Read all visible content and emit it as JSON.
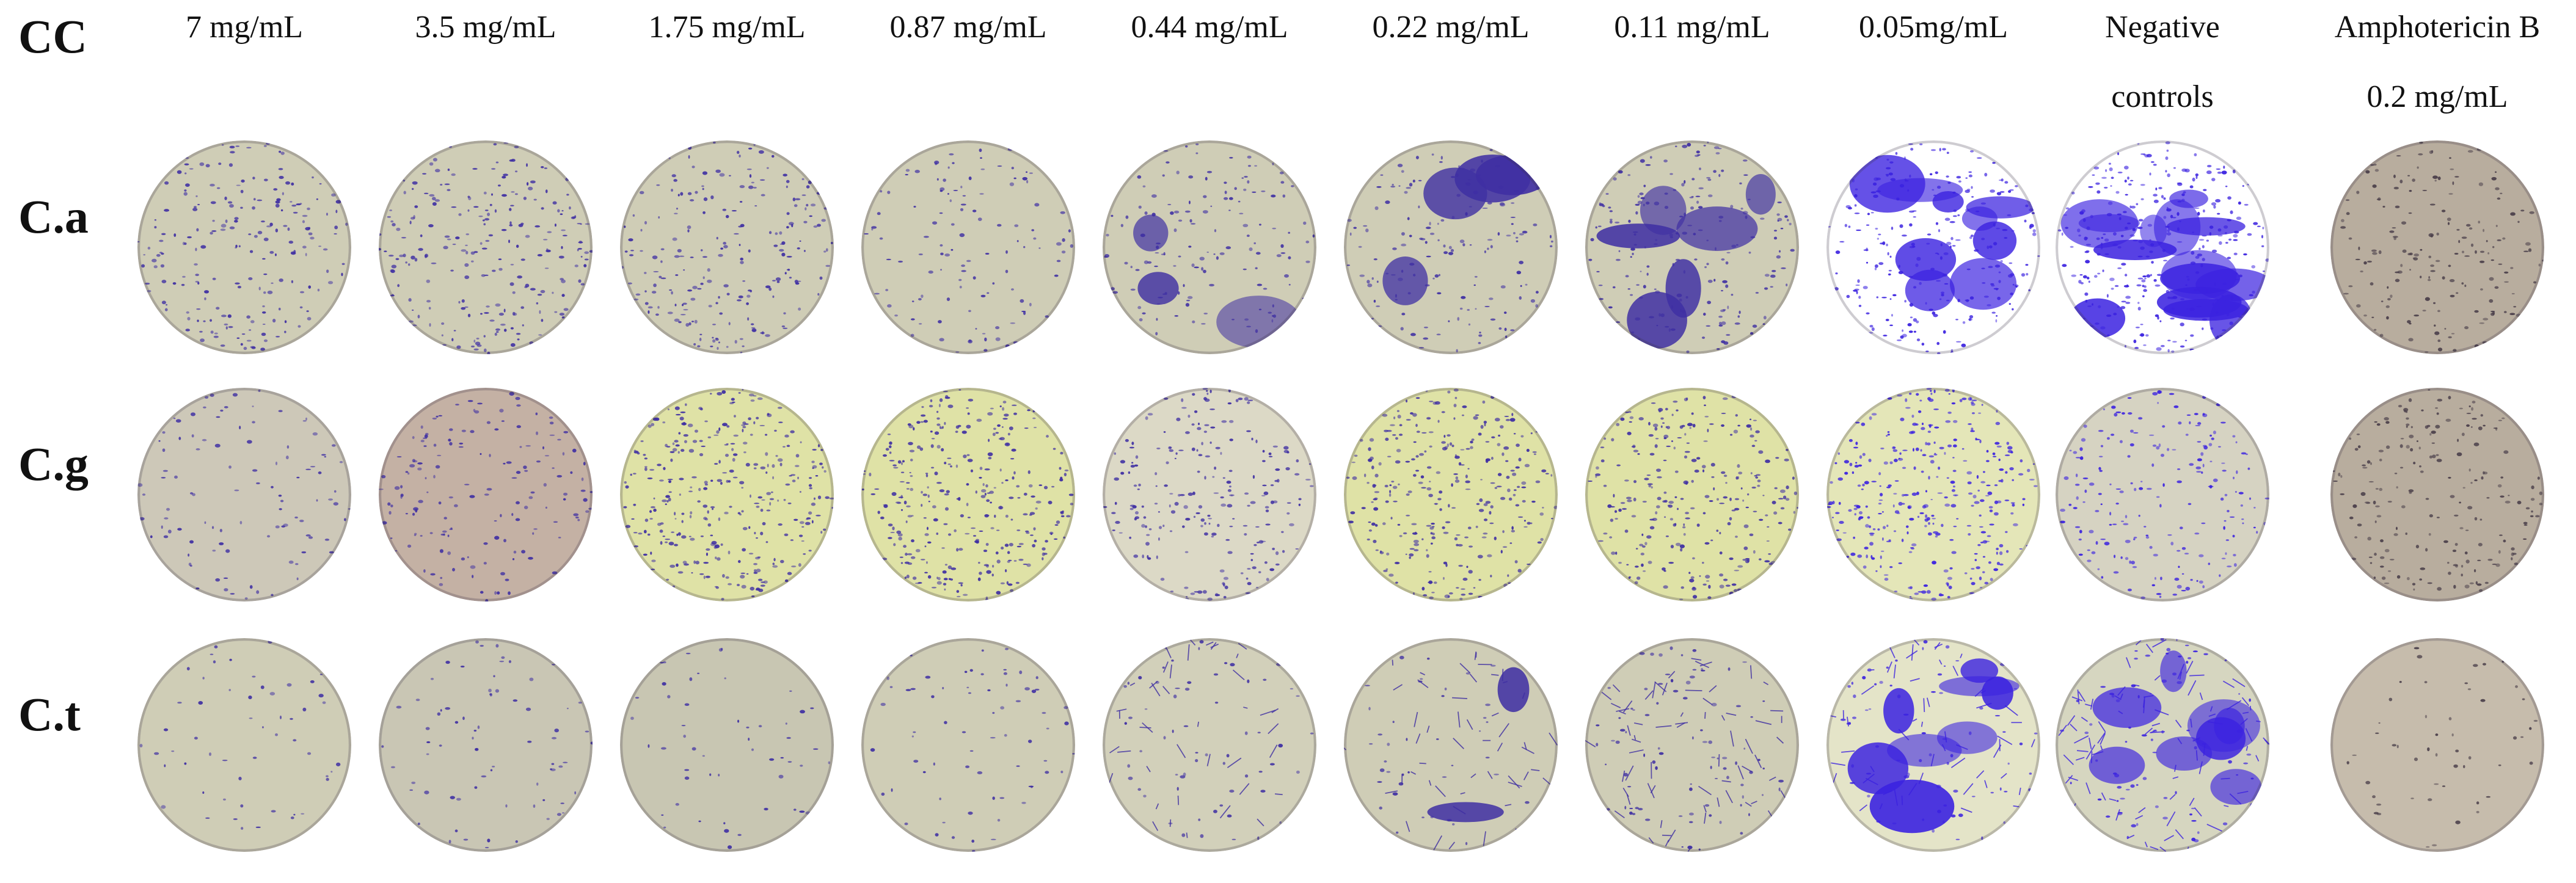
{
  "corner_label": "CC",
  "columns": [
    {
      "line1": "7 mg/mL",
      "line2": ""
    },
    {
      "line1": "3.5 mg/mL",
      "line2": ""
    },
    {
      "line1": "1.75 mg/mL",
      "line2": ""
    },
    {
      "line1": "0.87 mg/mL",
      "line2": ""
    },
    {
      "line1": "0.44 mg/mL",
      "line2": ""
    },
    {
      "line1": "0.22 mg/mL",
      "line2": ""
    },
    {
      "line1": "0.11 mg/mL",
      "line2": ""
    },
    {
      "line1": "0.05mg/mL",
      "line2": ""
    },
    {
      "line1": "Negative",
      "line2": "controls"
    },
    {
      "line1": "Amphotericin B",
      "line2": "0.2 mg/mL"
    }
  ],
  "rows": [
    {
      "label": "C.a"
    },
    {
      "label": "C.g"
    },
    {
      "label": "C.t"
    }
  ],
  "colors": {
    "background_tan": "#cfcdb6",
    "background_yellow": "#dfe2a6",
    "background_brown": "#b8ad9e",
    "stain_violet": "#3f2fa3",
    "stain_bright": "#3b22e0"
  }
}
